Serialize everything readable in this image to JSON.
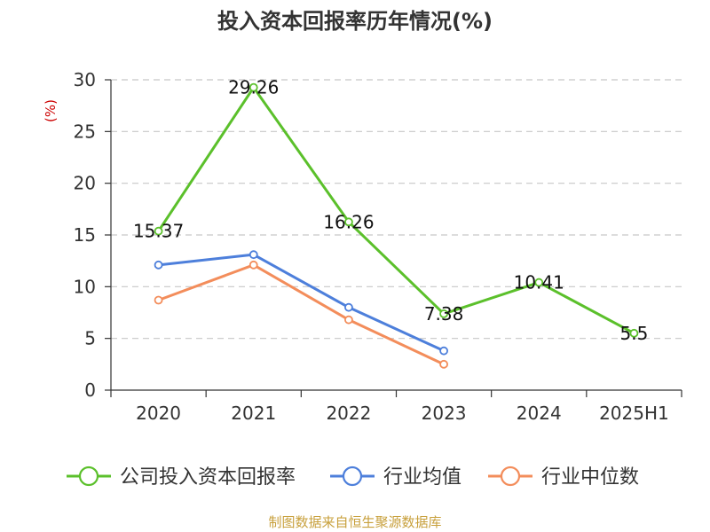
{
  "chart_data": {
    "type": "line",
    "title": "投入资本回报率历年情况(%)",
    "ylabel": "(%)",
    "ylim": [
      0,
      30
    ],
    "yticks": [
      0,
      5,
      10,
      15,
      20,
      25,
      30
    ],
    "categories": [
      "2020",
      "2021",
      "2022",
      "2023",
      "2024",
      "2025H1"
    ],
    "grid": "horizontal-dashed",
    "legend_position": "bottom",
    "series": [
      {
        "name": "公司投入资本回报率",
        "color": "#5bc02b",
        "values": [
          15.37,
          29.26,
          16.26,
          7.38,
          10.41,
          5.5
        ],
        "labels": [
          "15.37",
          "29.26",
          "16.26",
          "7.38",
          "10.41",
          "5.5"
        ]
      },
      {
        "name": "行业均值",
        "color": "#4d7fdb",
        "values": [
          12.1,
          13.1,
          8.0,
          3.8,
          null,
          null
        ]
      },
      {
        "name": "行业中位数",
        "color": "#f38d5b",
        "values": [
          8.7,
          12.1,
          6.8,
          2.5,
          null,
          null
        ]
      }
    ],
    "source": "制图数据来自恒生聚源数据库",
    "ylabel_color": "#cc0000",
    "source_color": "#c8a03c"
  }
}
